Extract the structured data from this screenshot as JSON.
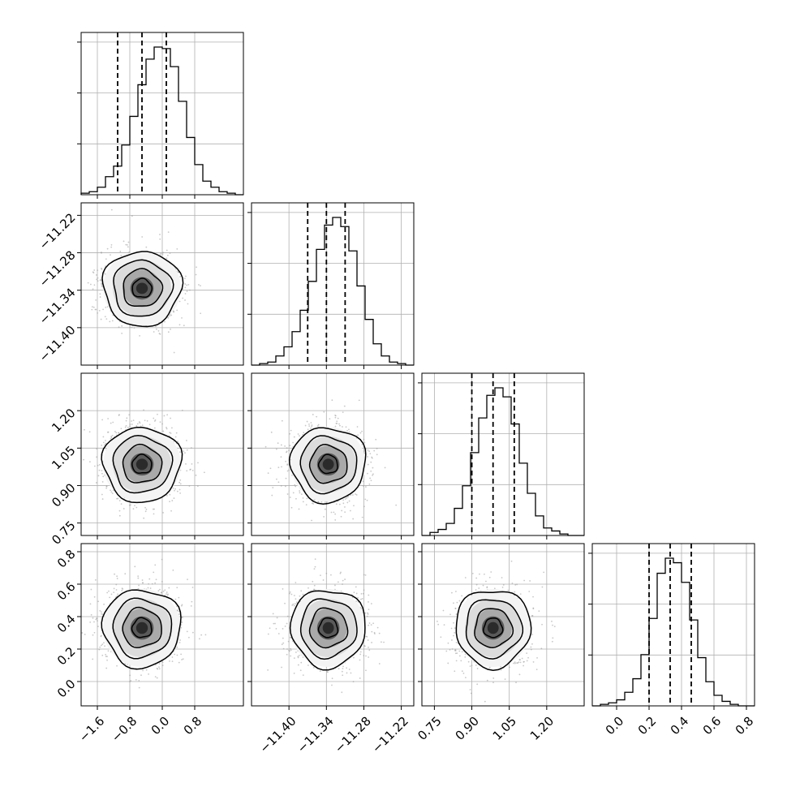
{
  "chart_data": {
    "type": "corner",
    "parameters": 4,
    "grid": true,
    "marginals": [
      {
        "parameter": 0,
        "range": [
          -2.0,
          2.0
        ],
        "ticks": [
          "-1.6",
          "-0.8",
          "0.0",
          "0.8"
        ],
        "tick_values": [
          -1.6,
          -0.8,
          0.0,
          0.8
        ],
        "quantiles": [
          -1.1,
          -0.5,
          0.1
        ],
        "bin_edges": [
          -2.0,
          -1.8,
          -1.6,
          -1.4,
          -1.2,
          -1.0,
          -0.8,
          -0.6,
          -0.4,
          -0.2,
          0.0,
          0.2,
          0.4,
          0.6,
          0.8,
          1.0,
          1.2,
          1.4,
          1.6,
          1.8,
          2.0
        ],
        "counts": [
          0.01,
          0.02,
          0.05,
          0.12,
          0.19,
          0.33,
          0.52,
          0.73,
          0.9,
          0.98,
          0.97,
          0.85,
          0.62,
          0.38,
          0.2,
          0.09,
          0.05,
          0.02,
          0.01,
          0.0
        ]
      },
      {
        "parameter": 1,
        "range": [
          -11.46,
          -11.2
        ],
        "ticks": [
          "-11.40",
          "-11.34",
          "-11.28",
          "-11.22"
        ],
        "tick_values": [
          -11.4,
          -11.34,
          -11.28,
          -11.22
        ],
        "quantiles": [
          -11.37,
          -11.34,
          -11.31
        ],
        "bin_edges": [
          -11.46,
          -11.447,
          -11.434,
          -11.421,
          -11.408,
          -11.395,
          -11.382,
          -11.369,
          -11.356,
          -11.343,
          -11.33,
          -11.317,
          -11.304,
          -11.291,
          -11.278,
          -11.265,
          -11.252,
          -11.239,
          -11.226,
          -11.213,
          -11.2
        ],
        "counts": [
          0.0,
          0.01,
          0.02,
          0.06,
          0.12,
          0.22,
          0.36,
          0.55,
          0.76,
          0.92,
          0.97,
          0.91,
          0.75,
          0.52,
          0.3,
          0.14,
          0.06,
          0.02,
          0.01,
          0.0
        ]
      },
      {
        "parameter": 2,
        "range": [
          0.7,
          1.35
        ],
        "ticks": [
          "0.75",
          "0.90",
          "1.05",
          "1.20"
        ],
        "tick_values": [
          0.75,
          0.9,
          1.05,
          1.2
        ],
        "quantiles": [
          0.9,
          0.985,
          1.07
        ],
        "bin_edges": [
          0.7,
          0.7325,
          0.765,
          0.7975,
          0.83,
          0.8625,
          0.895,
          0.9275,
          0.96,
          0.9925,
          1.025,
          1.0575,
          1.09,
          1.1225,
          1.155,
          1.1875,
          1.22,
          1.2525,
          1.285,
          1.3175,
          1.35
        ],
        "counts": [
          0.0,
          0.02,
          0.04,
          0.08,
          0.18,
          0.33,
          0.55,
          0.78,
          0.93,
          0.98,
          0.92,
          0.74,
          0.48,
          0.28,
          0.13,
          0.05,
          0.03,
          0.01,
          0.0,
          0.0
        ]
      },
      {
        "parameter": 3,
        "range": [
          -0.15,
          0.85
        ],
        "ticks": [
          "0.0",
          "0.2",
          "0.4",
          "0.6",
          "0.8"
        ],
        "tick_values": [
          0.0,
          0.2,
          0.4,
          0.6,
          0.8
        ],
        "quantiles": [
          0.2,
          0.33,
          0.46
        ],
        "bin_edges": [
          -0.15,
          -0.1,
          -0.05,
          0.0,
          0.05,
          0.1,
          0.15,
          0.2,
          0.25,
          0.3,
          0.35,
          0.4,
          0.45,
          0.5,
          0.55,
          0.6,
          0.65,
          0.7,
          0.75,
          0.8,
          0.85
        ],
        "counts": [
          0.0,
          0.01,
          0.02,
          0.04,
          0.09,
          0.18,
          0.34,
          0.58,
          0.88,
          0.98,
          0.95,
          0.82,
          0.57,
          0.32,
          0.16,
          0.07,
          0.03,
          0.01,
          0.0,
          0.0
        ]
      }
    ],
    "joint": [
      {
        "x_param": 0,
        "y_param": 1,
        "mean": [
          -0.5,
          -11.337
        ],
        "sigma": [
          0.48,
          0.03
        ],
        "contour_levels_sigma": [
          0.5,
          1.0,
          1.5,
          2.0
        ]
      },
      {
        "x_param": 0,
        "y_param": 2,
        "mean": [
          -0.5,
          0.985
        ],
        "sigma": [
          0.48,
          0.075
        ],
        "contour_levels_sigma": [
          0.5,
          1.0,
          1.5,
          2.0
        ]
      },
      {
        "x_param": 1,
        "y_param": 2,
        "mean": [
          -11.337,
          0.985
        ],
        "sigma": [
          0.03,
          0.075
        ],
        "contour_levels_sigma": [
          0.5,
          1.0,
          1.5,
          2.0
        ]
      },
      {
        "x_param": 0,
        "y_param": 3,
        "mean": [
          -0.5,
          0.33
        ],
        "sigma": [
          0.48,
          0.12
        ],
        "contour_levels_sigma": [
          0.5,
          1.0,
          1.5,
          2.0
        ]
      },
      {
        "x_param": 1,
        "y_param": 3,
        "mean": [
          -11.337,
          0.33
        ],
        "sigma": [
          0.03,
          0.12
        ],
        "contour_levels_sigma": [
          0.5,
          1.0,
          1.5,
          2.0
        ]
      },
      {
        "x_param": 2,
        "y_param": 3,
        "mean": [
          0.985,
          0.33
        ],
        "sigma": [
          0.075,
          0.12
        ],
        "contour_levels_sigma": [
          0.5,
          1.0,
          1.5,
          2.0
        ]
      }
    ],
    "colors": {
      "line": "#000000",
      "grid": "#b0b0b0",
      "points": "#9a9a9a",
      "frame": "#000000"
    }
  }
}
